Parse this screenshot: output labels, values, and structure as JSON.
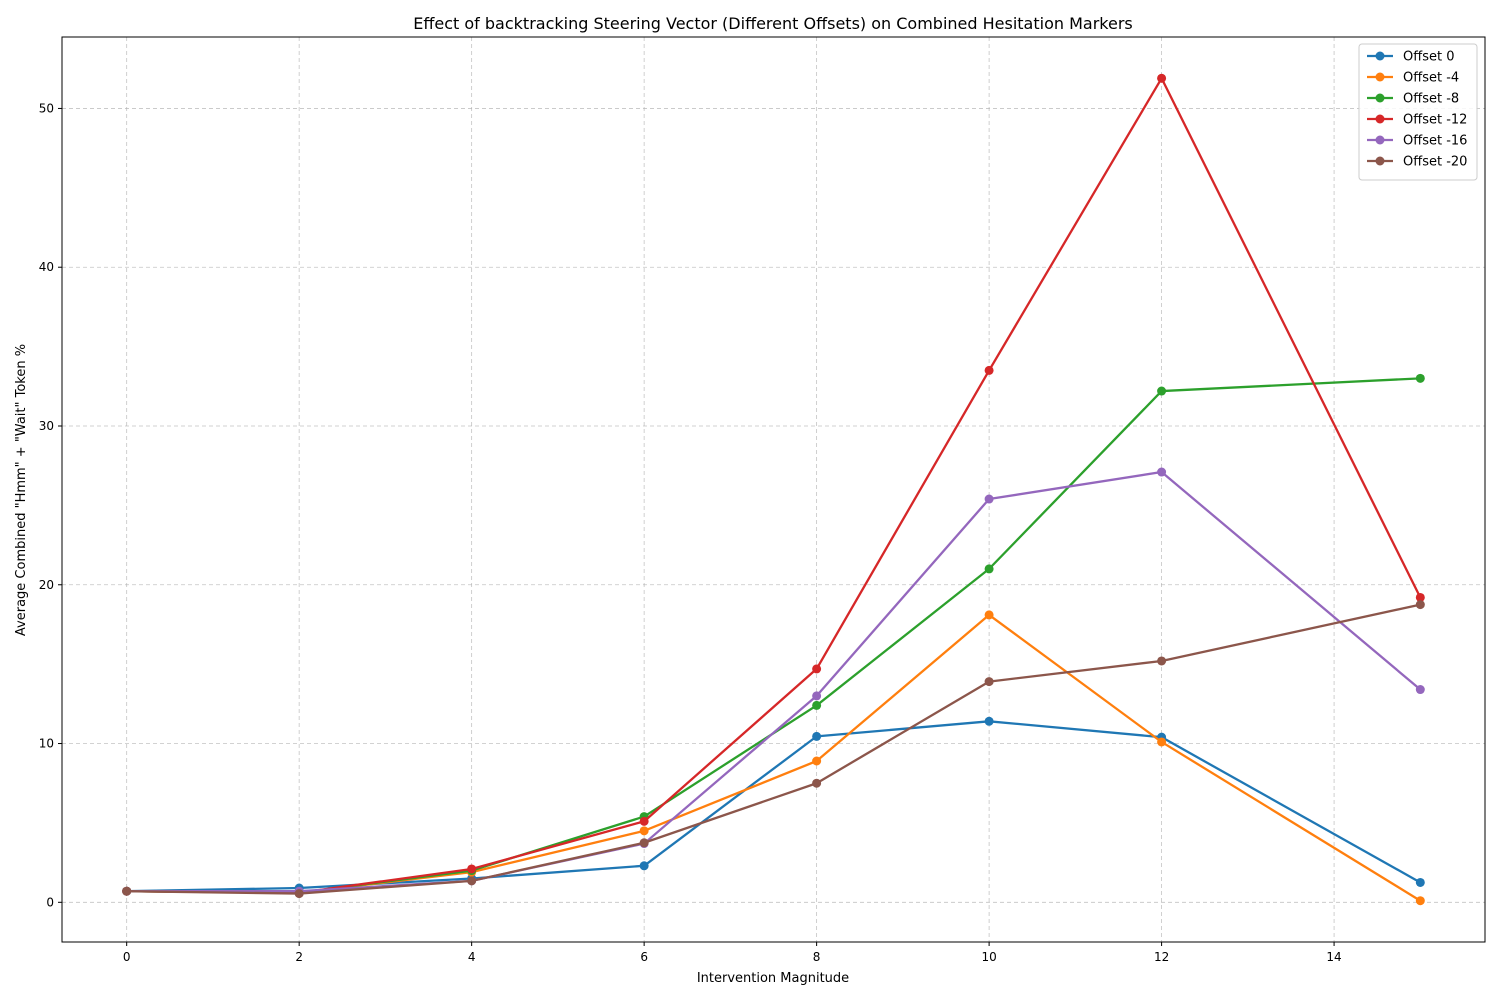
{
  "chart_data": {
    "type": "line",
    "title": "Effect of backtracking Steering Vector (Different Offsets) on Combined Hesitation Markers",
    "xlabel": "Intervention Magnitude",
    "ylabel": "Average Combined \"Hmm\" + \"Wait\" Token %",
    "x": [
      0,
      2,
      4,
      6,
      8,
      10,
      12,
      15
    ],
    "xlim": [
      -0.75,
      15.75
    ],
    "ylim": [
      -2.5,
      54.5
    ],
    "xticks": [
      0,
      2,
      4,
      6,
      8,
      10,
      12,
      14
    ],
    "yticks": [
      0,
      10,
      20,
      30,
      40,
      50
    ],
    "grid": true,
    "legend_position": "top-right",
    "series": [
      {
        "name": "Offset 0",
        "color": "#1f77b4",
        "values": [
          0.7,
          0.9,
          1.5,
          2.3,
          10.45,
          11.4,
          10.4,
          1.25
        ]
      },
      {
        "name": "Offset -4",
        "color": "#ff7f0e",
        "values": [
          0.7,
          0.6,
          1.9,
          4.5,
          8.9,
          18.1,
          10.1,
          0.1
        ]
      },
      {
        "name": "Offset -8",
        "color": "#2ca02c",
        "values": [
          0.7,
          0.6,
          2.0,
          5.4,
          12.4,
          21.0,
          32.2,
          33.0
        ]
      },
      {
        "name": "Offset -12",
        "color": "#d62728",
        "values": [
          0.7,
          0.6,
          2.1,
          5.1,
          14.7,
          33.5,
          51.9,
          19.2
        ]
      },
      {
        "name": "Offset -16",
        "color": "#9467bd",
        "values": [
          0.7,
          0.7,
          1.35,
          3.7,
          13.0,
          25.4,
          27.1,
          13.4
        ]
      },
      {
        "name": "Offset -20",
        "color": "#8c564b",
        "values": [
          0.7,
          0.55,
          1.35,
          3.75,
          7.5,
          13.9,
          15.2,
          18.75
        ]
      }
    ]
  }
}
